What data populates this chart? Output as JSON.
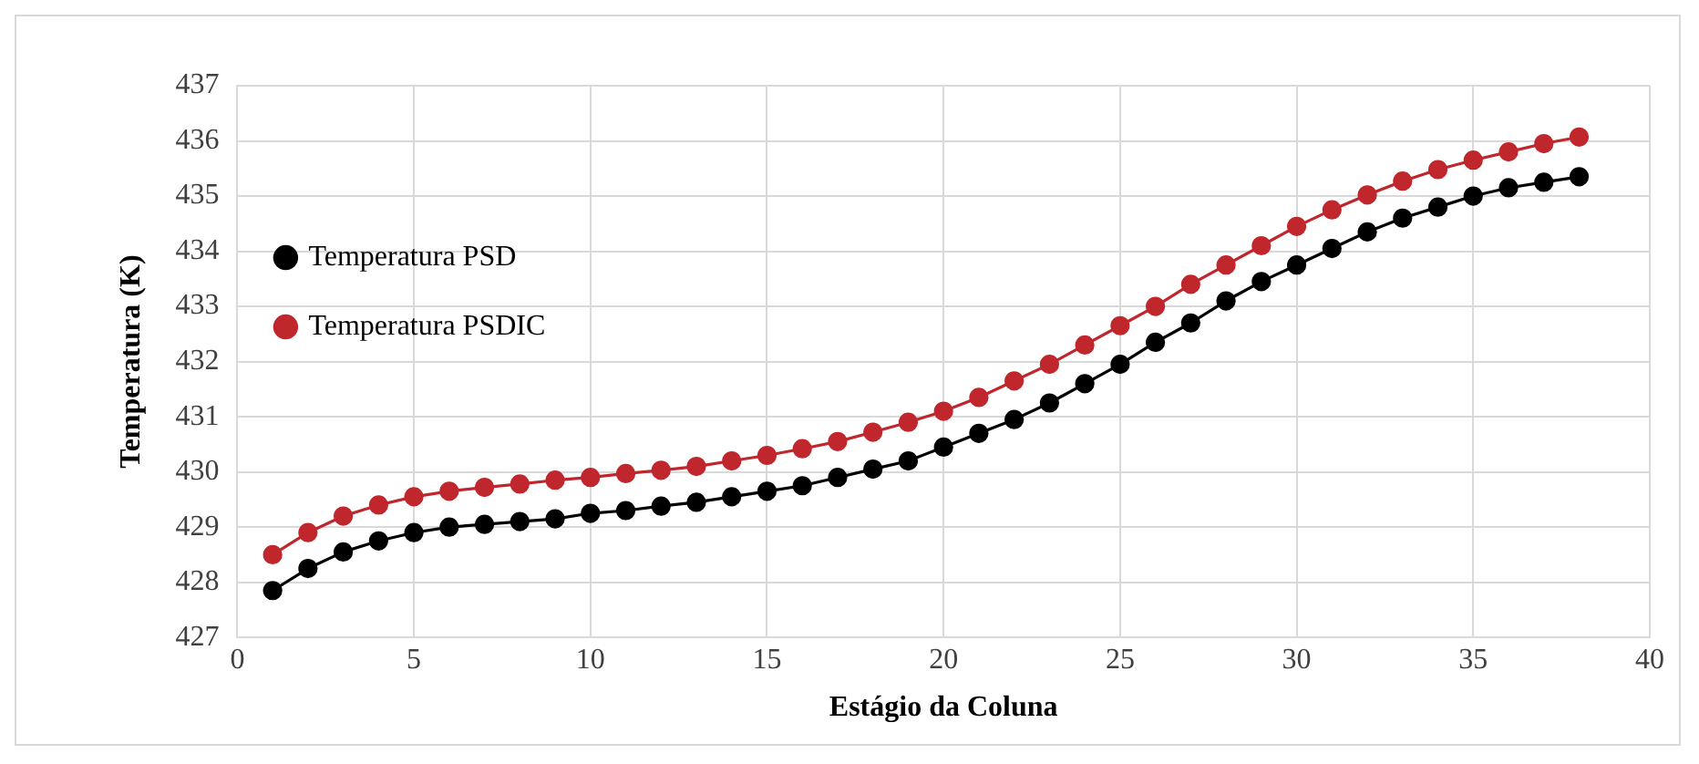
{
  "chart_data": {
    "type": "line",
    "xlabel": "Estágio da Coluna",
    "ylabel": "Temperatura (K)",
    "x": [
      1,
      2,
      3,
      4,
      5,
      6,
      7,
      8,
      9,
      10,
      11,
      12,
      13,
      14,
      15,
      16,
      17,
      18,
      19,
      20,
      21,
      22,
      23,
      24,
      25,
      26,
      27,
      28,
      29,
      30,
      31,
      32,
      33,
      34,
      35,
      36,
      37,
      38
    ],
    "series": [
      {
        "name": "Temperatura PSD",
        "color": "#000000",
        "values": [
          427.85,
          428.25,
          428.55,
          428.75,
          428.9,
          429.0,
          429.05,
          429.1,
          429.15,
          429.25,
          429.3,
          429.38,
          429.45,
          429.55,
          429.65,
          429.75,
          429.9,
          430.05,
          430.2,
          430.45,
          430.7,
          430.95,
          431.25,
          431.6,
          431.95,
          432.35,
          432.7,
          433.1,
          433.45,
          433.75,
          434.05,
          434.35,
          434.6,
          434.8,
          435.0,
          435.15,
          435.25,
          435.35
        ]
      },
      {
        "name": "Temperatura PSDIC",
        "color": "#c0272d",
        "values": [
          428.5,
          428.9,
          429.2,
          429.4,
          429.55,
          429.65,
          429.72,
          429.78,
          429.85,
          429.9,
          429.97,
          430.03,
          430.1,
          430.2,
          430.3,
          430.42,
          430.55,
          430.72,
          430.9,
          431.1,
          431.35,
          431.65,
          431.95,
          432.3,
          432.65,
          433.0,
          433.4,
          433.75,
          434.1,
          434.45,
          434.75,
          435.02,
          435.27,
          435.48,
          435.65,
          435.8,
          435.95,
          436.07
        ]
      }
    ],
    "xlim": [
      0,
      40
    ],
    "xticks": [
      0,
      5,
      10,
      15,
      20,
      25,
      30,
      35,
      40
    ],
    "ylim": [
      427,
      437
    ],
    "yticks": [
      427,
      428,
      429,
      430,
      431,
      432,
      433,
      434,
      435,
      436,
      437
    ],
    "grid": true,
    "legend": "top",
    "marker": "circle",
    "line_style": "solid"
  }
}
